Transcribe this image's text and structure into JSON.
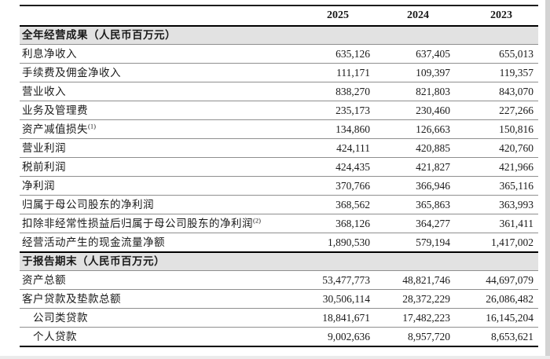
{
  "page": {
    "background": "#ffffff",
    "section_band_color": "#e2e2e2",
    "rule_color_thin": "#8f8f8f",
    "rule_color_thick": "#000000"
  },
  "header": {
    "years": [
      "2025",
      "2024",
      "2023"
    ]
  },
  "sections": [
    {
      "title": "全年经营成果（人民币百万元）",
      "rows": [
        {
          "label": "利息净收入",
          "sup": "",
          "indent": false,
          "values": [
            "635,126",
            "637,405",
            "655,013"
          ]
        },
        {
          "label": "手续费及佣金净收入",
          "sup": "",
          "indent": false,
          "values": [
            "111,171",
            "109,397",
            "119,357"
          ]
        },
        {
          "label": "营业收入",
          "sup": "",
          "indent": false,
          "values": [
            "838,270",
            "821,803",
            "843,070"
          ]
        },
        {
          "label": "业务及管理费",
          "sup": "",
          "indent": false,
          "values": [
            "235,173",
            "230,460",
            "227,266"
          ]
        },
        {
          "label": "资产减值损失",
          "sup": "(1)",
          "indent": false,
          "values": [
            "134,860",
            "126,663",
            "150,816"
          ]
        },
        {
          "label": "营业利润",
          "sup": "",
          "indent": false,
          "values": [
            "424,111",
            "420,885",
            "420,760"
          ]
        },
        {
          "label": "税前利润",
          "sup": "",
          "indent": false,
          "values": [
            "424,435",
            "421,827",
            "421,966"
          ]
        },
        {
          "label": "净利润",
          "sup": "",
          "indent": false,
          "values": [
            "370,766",
            "366,946",
            "365,116"
          ]
        },
        {
          "label": "归属于母公司股东的净利润",
          "sup": "",
          "indent": false,
          "values": [
            "368,562",
            "365,863",
            "363,993"
          ]
        },
        {
          "label": "扣除非经常性损益后归属于母公司股东的净利润",
          "sup": "(2)",
          "indent": false,
          "values": [
            "368,126",
            "364,277",
            "361,411"
          ]
        },
        {
          "label": "经营活动产生的现金流量净额",
          "sup": "",
          "indent": false,
          "values": [
            "1,890,530",
            "579,194",
            "1,417,002"
          ]
        }
      ]
    },
    {
      "title": "于报告期末（人民币百万元）",
      "rows": [
        {
          "label": "资产总额",
          "sup": "",
          "indent": false,
          "values": [
            "53,477,773",
            "48,821,746",
            "44,697,079"
          ]
        },
        {
          "label": "客户贷款及垫款总额",
          "sup": "",
          "indent": false,
          "values": [
            "30,506,114",
            "28,372,229",
            "26,086,482"
          ]
        },
        {
          "label": "公司类贷款",
          "sup": "",
          "indent": true,
          "values": [
            "18,841,671",
            "17,482,223",
            "16,145,204"
          ]
        },
        {
          "label": "个人贷款",
          "sup": "",
          "indent": true,
          "values": [
            "9,002,636",
            "8,957,720",
            "8,653,621"
          ]
        }
      ]
    }
  ]
}
